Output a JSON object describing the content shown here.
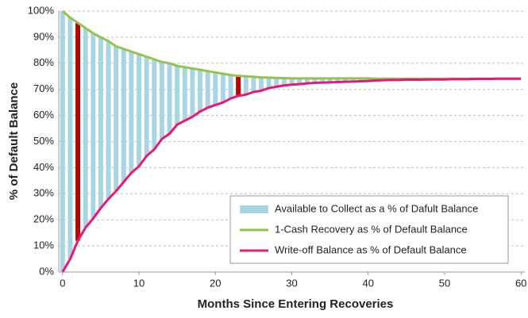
{
  "chart_data": {
    "type": "bar-line",
    "x": [
      0,
      1,
      2,
      3,
      4,
      5,
      6,
      7,
      8,
      9,
      10,
      11,
      12,
      13,
      14,
      15,
      16,
      17,
      18,
      19,
      20,
      21,
      22,
      23,
      24,
      25,
      26,
      27,
      28,
      29,
      30,
      31,
      32,
      33,
      34,
      35,
      36,
      37,
      38,
      39,
      40,
      41,
      42,
      43,
      44,
      45,
      46,
      47,
      48,
      49,
      50,
      51,
      52,
      53,
      54,
      55,
      56,
      57,
      58,
      59,
      60
    ],
    "series": [
      {
        "name": "Available to Collect as a % of Dafult Balance",
        "type": "bar",
        "color": "#a8d5e4",
        "highlight_color": "#c00000",
        "highlight_indices": [
          2,
          23
        ],
        "values": [
          100,
          92.5,
          83.5,
          76.5,
          71,
          65.5,
          60.5,
          55.5,
          51,
          46.5,
          43,
          38,
          34.5,
          29.5,
          27,
          22.5,
          20.5,
          18.5,
          16,
          14,
          12.5,
          11,
          9,
          7.7,
          7,
          5.8,
          5.1,
          4,
          3.4,
          2.8,
          2.4,
          2.2,
          1.9,
          1.7,
          1.6,
          1.5,
          1.4,
          1.3,
          1.2,
          1.1,
          1.0,
          0.7,
          0.6,
          0.5,
          0.5,
          0.4,
          0.4,
          0.4,
          0.3,
          0.3,
          0.3,
          0.2,
          0.2,
          0.2,
          0.1,
          0.1,
          0.1,
          0,
          0,
          0,
          0
        ]
      },
      {
        "name": "1-Cash Recovery as % of Default Balance",
        "type": "line",
        "color": "#92c353",
        "values": [
          100,
          97.5,
          95.5,
          93.5,
          91.5,
          90,
          88.5,
          86.5,
          85.5,
          84.5,
          83.5,
          82.5,
          81.5,
          80.5,
          80,
          79,
          78.5,
          78,
          77.5,
          77,
          76.5,
          76,
          75.5,
          75.2,
          75,
          74.8,
          74.6,
          74.5,
          74.4,
          74.3,
          74.2,
          74.2,
          74.2,
          74.2,
          74.2,
          74.2,
          74.2,
          74.2,
          74.2,
          74.2,
          74.2,
          74.1,
          74.1,
          74.1,
          74.1,
          74.1,
          74.1,
          74.1,
          74.1,
          74.1,
          74.1,
          74.1,
          74.1,
          74.1,
          74.1,
          74.1,
          74.1,
          74.1,
          74.1,
          74.1,
          74.1
        ]
      },
      {
        "name": "Write-off Balance as % of Default Balance",
        "type": "line",
        "color": "#e6197a",
        "values": [
          0,
          5,
          12,
          17,
          20.5,
          24.5,
          28,
          31,
          34.5,
          38,
          40.5,
          44.5,
          47,
          51,
          53,
          56.5,
          58,
          59.5,
          61.5,
          63,
          64,
          65,
          66.5,
          67.5,
          68,
          69,
          69.5,
          70.5,
          71,
          71.5,
          71.8,
          72,
          72.3,
          72.5,
          72.6,
          72.7,
          72.8,
          72.9,
          73,
          73.1,
          73.2,
          73.4,
          73.5,
          73.6,
          73.6,
          73.7,
          73.7,
          73.7,
          73.8,
          73.8,
          73.8,
          73.9,
          73.9,
          73.9,
          74,
          74,
          74,
          74.1,
          74.1,
          74.1,
          74.1
        ]
      }
    ],
    "x_label": "Months Since Entering Recoveries",
    "y_label": "% of Default Balance",
    "xlim": [
      -0.5,
      60.5
    ],
    "xticks": [
      0,
      10,
      20,
      30,
      40,
      50,
      60
    ],
    "ylim": [
      0,
      100
    ],
    "yticks": [
      {
        "value": 0,
        "label": "0%"
      },
      {
        "value": 10,
        "label": "10%"
      },
      {
        "value": 20,
        "label": "20%"
      },
      {
        "value": 30,
        "label": "30%"
      },
      {
        "value": 40,
        "label": "40%"
      },
      {
        "value": 50,
        "label": "50%"
      },
      {
        "value": 60,
        "label": "60%"
      },
      {
        "value": 70,
        "label": "70%"
      },
      {
        "value": 80,
        "label": "80%"
      },
      {
        "value": 90,
        "label": "90%"
      },
      {
        "value": 100,
        "label": "100%"
      }
    ],
    "grid": true,
    "legend": "lower right"
  }
}
